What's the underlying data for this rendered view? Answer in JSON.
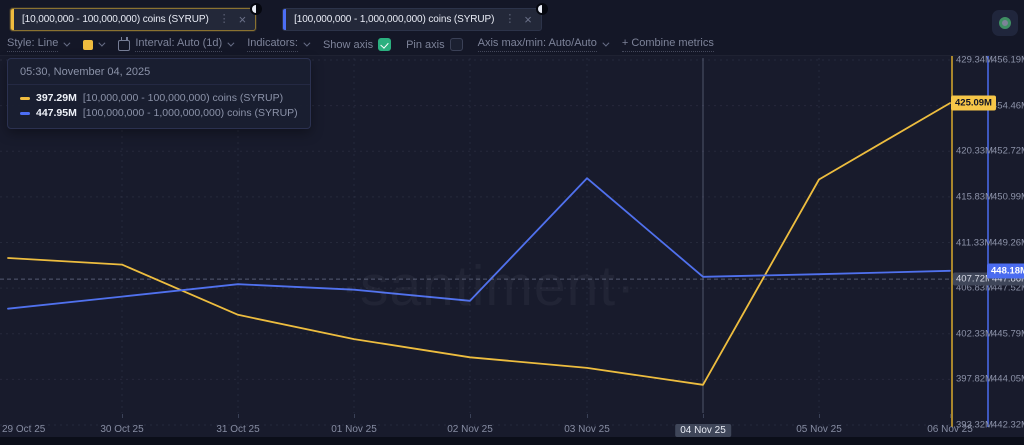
{
  "metrics": [
    {
      "label": "[10,000,000 - 100,000,000) coins (SYRUP)",
      "color": "#f0bc3f",
      "active": true
    },
    {
      "label": "[100,000,000 - 1,000,000,000) coins (SYRUP)",
      "color": "#4c6ef5",
      "active": false
    }
  ],
  "toolbar": {
    "style_label": "Style: Line",
    "interval_label": "Interval: Auto (1d)",
    "indicators_label": "Indicators:",
    "show_axis_label": "Show axis",
    "show_axis_checked": true,
    "pin_axis_label": "Pin axis",
    "pin_axis_checked": false,
    "axis_maxmin_label": "Axis max/min: Auto/Auto",
    "combine_metrics_label": "+ Combine metrics",
    "swatch_color": "#f0bc3f",
    "checkbox_color": "#2bb07f"
  },
  "tooltip": {
    "timestamp": "05:30, November 04, 2025",
    "rows": [
      {
        "value": "397.29M",
        "label": "[10,000,000 - 100,000,000) coins (SYRUP)",
        "color": "#f0bc3f"
      },
      {
        "value": "447.95M",
        "label": "[100,000,000 - 1,000,000,000) coins (SYRUP)",
        "color": "#4c6ef5"
      }
    ]
  },
  "chart_data": {
    "type": "line",
    "title": "",
    "watermark": "·santiment·",
    "grid": true,
    "x": [
      "29 Oct 25",
      "30 Oct 25",
      "31 Oct 25",
      "01 Nov 25",
      "02 Nov 25",
      "03 Nov 25",
      "04 Nov 25",
      "05 Nov 25",
      "06 Nov 25"
    ],
    "series": [
      {
        "name": "[10,000,000 - 100,000,000) coins (SYRUP)",
        "color": "#edbd3f",
        "axis_color": "#d9a92c",
        "unit": "M coins",
        "values": [
          409.8,
          409.15,
          404.2,
          401.8,
          400.0,
          398.95,
          397.29,
          417.55,
          425.09
        ],
        "axis": {
          "min": 393.32,
          "max": 429.34,
          "ticks": [
            "429.34M",
            "424.84M",
            "420.33M",
            "415.83M",
            "411.33M",
            "406.83M",
            "402.33M",
            "397.82M",
            "393.32M"
          ]
        },
        "last_value_badge": "425.09M"
      },
      {
        "name": "[100,000,000 - 1,000,000,000) coins (SYRUP)",
        "color": "#5071ee",
        "axis_color": "#4b6cf0",
        "unit": "M coins",
        "values": [
          446.74,
          447.2,
          447.67,
          447.46,
          447.04,
          451.7,
          447.95,
          448.05,
          448.18
        ],
        "axis": {
          "min": 442.32,
          "max": 456.19,
          "ticks": [
            "456.19M",
            "454.46M",
            "452.72M",
            "450.99M",
            "449.26M",
            "447.52M",
            "445.79M",
            "444.05M",
            "442.32M"
          ]
        },
        "last_value_badge": "448.18M"
      }
    ],
    "crosshair": {
      "x_index": 6,
      "x_label": "04 Nov 25",
      "axis_labels": [
        "407.72M",
        "447.86M"
      ]
    },
    "legend_position": "floating-tooltip"
  }
}
